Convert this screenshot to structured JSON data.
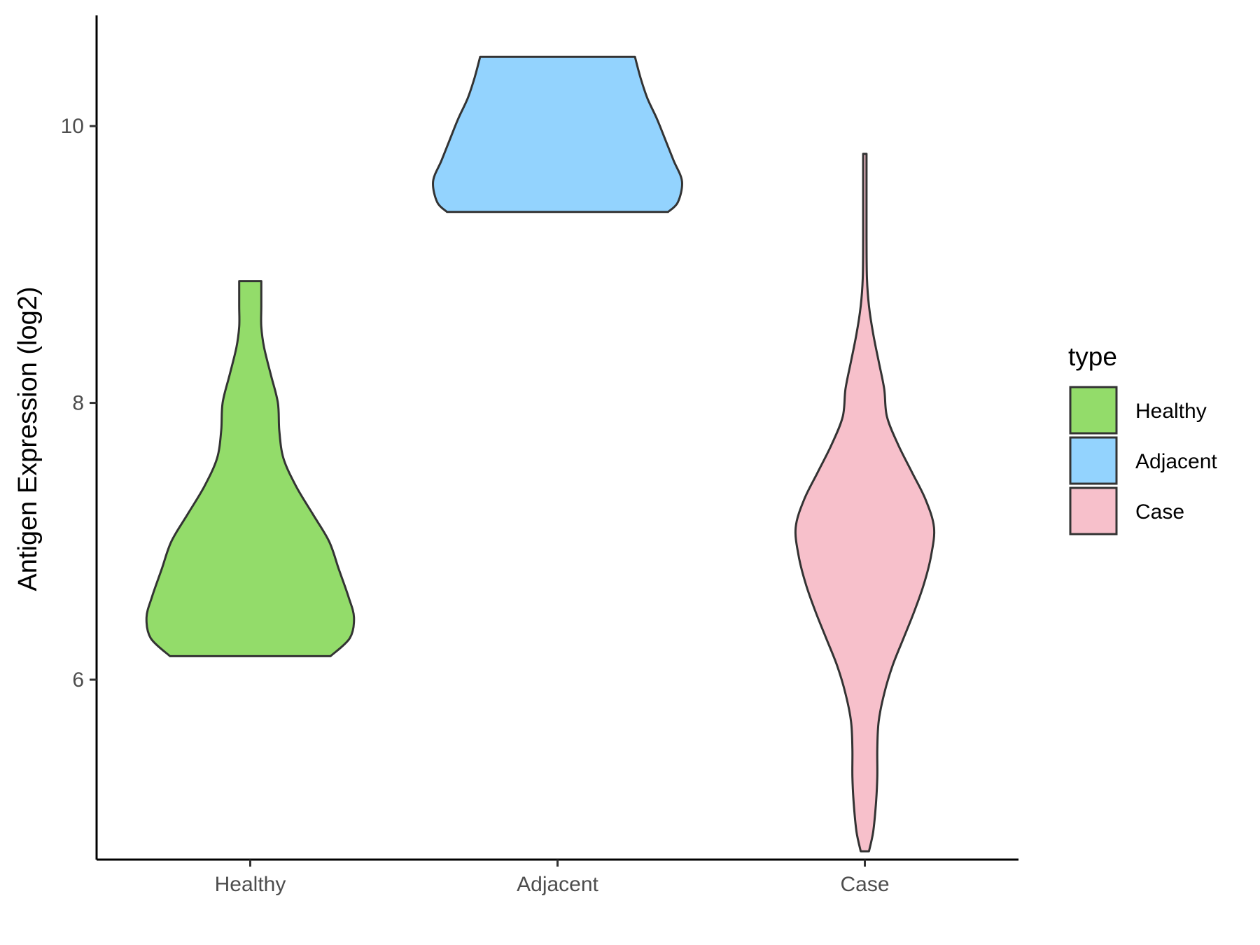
{
  "chart_data": {
    "type": "violin",
    "title": "",
    "xlabel": "",
    "ylabel": "Antigen Expression (log2)",
    "categories": [
      "Healthy",
      "Adjacent",
      "Case"
    ],
    "ylim": [
      4.7,
      10.8
    ],
    "yticks": [
      6,
      8,
      10
    ],
    "grid": false,
    "legend": {
      "title": "type",
      "position": "right",
      "entries": [
        {
          "label": "Healthy",
          "color": "#93dc6a"
        },
        {
          "label": "Adjacent",
          "color": "#93d3fe"
        },
        {
          "label": "Case",
          "color": "#f7c0cb"
        }
      ]
    },
    "series": [
      {
        "category": "Healthy",
        "color": "#93dc6a",
        "min": 6.17,
        "max": 8.88,
        "profile": [
          [
            6.17,
            0.58
          ],
          [
            6.3,
            0.72
          ],
          [
            6.45,
            0.75
          ],
          [
            6.6,
            0.71
          ],
          [
            6.8,
            0.64
          ],
          [
            7.0,
            0.57
          ],
          [
            7.2,
            0.45
          ],
          [
            7.4,
            0.33
          ],
          [
            7.6,
            0.24
          ],
          [
            7.8,
            0.21
          ],
          [
            8.0,
            0.2
          ],
          [
            8.2,
            0.15
          ],
          [
            8.4,
            0.1
          ],
          [
            8.55,
            0.08
          ],
          [
            8.7,
            0.08
          ],
          [
            8.88,
            0.08
          ]
        ]
      },
      {
        "category": "Adjacent",
        "color": "#93d3fe",
        "min": 9.38,
        "max": 10.5,
        "profile": [
          [
            9.38,
            0.8
          ],
          [
            9.45,
            0.87
          ],
          [
            9.6,
            0.9
          ],
          [
            9.75,
            0.84
          ],
          [
            9.9,
            0.78
          ],
          [
            10.05,
            0.72
          ],
          [
            10.2,
            0.65
          ],
          [
            10.35,
            0.6
          ],
          [
            10.5,
            0.56
          ]
        ]
      },
      {
        "category": "Case",
        "color": "#f7c0cb",
        "min": 4.76,
        "max": 9.8,
        "profile": [
          [
            4.76,
            0.03
          ],
          [
            4.9,
            0.06
          ],
          [
            5.1,
            0.08
          ],
          [
            5.3,
            0.09
          ],
          [
            5.5,
            0.09
          ],
          [
            5.7,
            0.1
          ],
          [
            5.9,
            0.14
          ],
          [
            6.1,
            0.2
          ],
          [
            6.3,
            0.28
          ],
          [
            6.5,
            0.36
          ],
          [
            6.7,
            0.43
          ],
          [
            6.9,
            0.48
          ],
          [
            7.1,
            0.5
          ],
          [
            7.3,
            0.44
          ],
          [
            7.5,
            0.34
          ],
          [
            7.7,
            0.24
          ],
          [
            7.9,
            0.16
          ],
          [
            8.1,
            0.14
          ],
          [
            8.3,
            0.1
          ],
          [
            8.5,
            0.06
          ],
          [
            8.7,
            0.03
          ],
          [
            8.9,
            0.015
          ],
          [
            9.2,
            0.012
          ],
          [
            9.5,
            0.012
          ],
          [
            9.8,
            0.012
          ]
        ]
      }
    ]
  }
}
